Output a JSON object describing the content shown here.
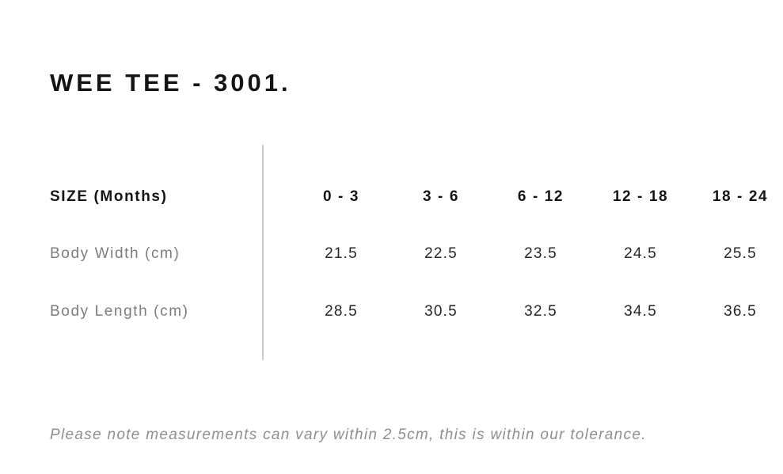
{
  "header": {
    "title": "WEE TEE - 3001."
  },
  "modal": {
    "close_icon": "✕"
  },
  "size_chart": {
    "row_header_label": "SIZE (Months)",
    "columns": [
      "0 - 3",
      "3 - 6",
      "6 - 12",
      "12 - 18",
      "18 - 24"
    ],
    "rows": [
      {
        "label": "Body Width (cm)",
        "values": [
          "21.5",
          "22.5",
          "23.5",
          "24.5",
          "25.5"
        ]
      },
      {
        "label": "Body Length (cm)",
        "values": [
          "28.5",
          "30.5",
          "32.5",
          "34.5",
          "36.5"
        ]
      }
    ]
  },
  "footer": {
    "note": "Please note measurements can vary within 2.5cm, this is within our tolerance."
  },
  "colors": {
    "background": "#ffffff",
    "text_primary": "#141414",
    "text_secondary": "#7d7d7d",
    "note_gray": "#8f8f8f",
    "divider": "#cbcbcb"
  }
}
